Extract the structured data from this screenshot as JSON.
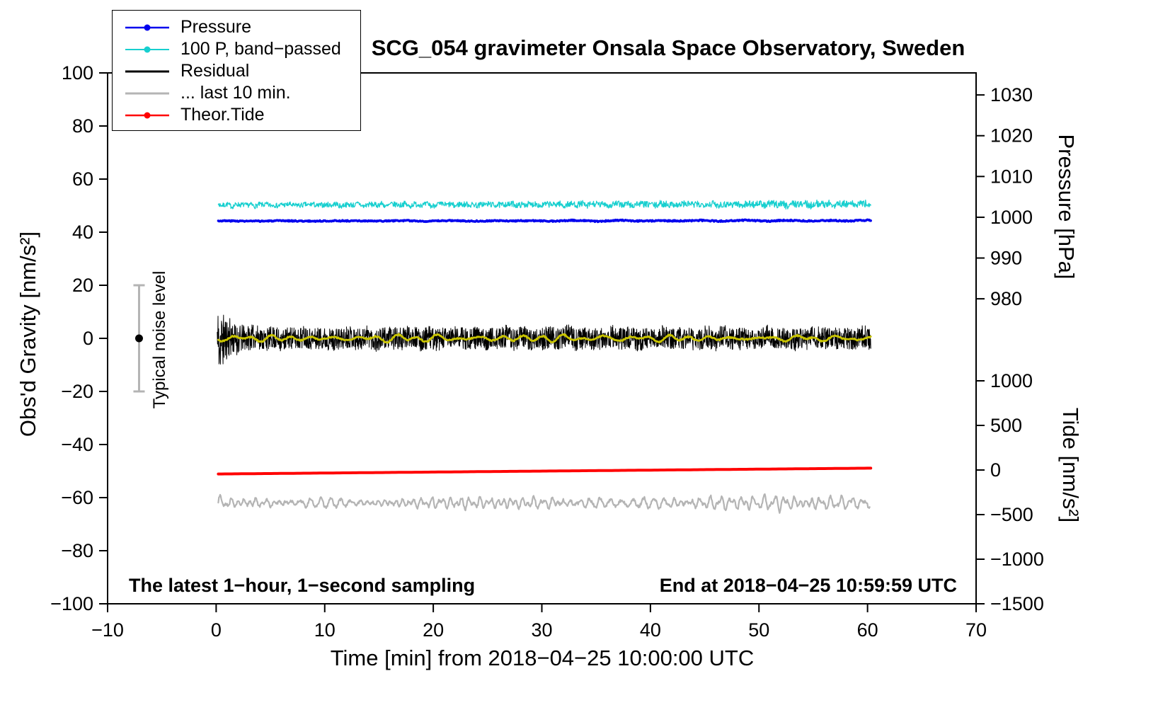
{
  "annotations": {
    "sampling": "The latest 1−hour, 1−second sampling",
    "end_time": "End at 2018−04−25 10:59:59 UTC",
    "noise_label": "Typical noise level"
  },
  "legend": {
    "items": [
      {
        "label": "Pressure",
        "color": "#0000ee",
        "marker_width": 2.5,
        "dot": true
      },
      {
        "label": "100 P, band−passed",
        "color": "#17cfcf",
        "marker_width": 2,
        "dot": true
      },
      {
        "label": "Residual",
        "color": "#000000",
        "marker_width": 3,
        "dot": false
      },
      {
        "label": "... last 10 min.",
        "color": "#b4b4b4",
        "marker_width": 3,
        "dot": false
      },
      {
        "label": "Theor.Tide",
        "color": "#ff0000",
        "marker_width": 2.5,
        "dot": true
      }
    ]
  },
  "chart_data": {
    "type": "line",
    "title": "SCG_054 gravimeter Onsala Space Observatory, Sweden",
    "xlabel": "Time [min] from 2018−04−25 10:00:00 UTC",
    "ylabel": "Obs'd Gravity [nm/s²]",
    "y2label_top": "Pressure [hPa]",
    "y2label_bottom": "Tide [nm/s²]",
    "x_range": [
      -10,
      70
    ],
    "x_ticks": [
      -10,
      0,
      10,
      20,
      30,
      40,
      50,
      60,
      70
    ],
    "y_range": [
      -100,
      100
    ],
    "y_ticks": [
      100,
      80,
      60,
      40,
      20,
      0,
      -20,
      -40,
      -60,
      -80,
      -100
    ],
    "grid": false,
    "pressure_axis": {
      "ticks": [
        1030,
        1020,
        1010,
        1000,
        990,
        980
      ],
      "gravity_of_first_tick": 91.7,
      "gravity_per_hpa": 1.536
    },
    "tide_axis": {
      "ticks": [
        1000,
        500,
        0,
        -500,
        -1000,
        -1500
      ],
      "gravity_of_first_tick": -16,
      "gravity_per_unit": 0.0336
    },
    "noise_bar": {
      "x": -7.1,
      "center": 0,
      "half_range": 20,
      "color": "#b4b4b4",
      "note": "typical noise level ±20 nm/s² marker"
    },
    "series": [
      {
        "id": "bandpassed",
        "name": "100 P, band−passed",
        "color": "#17cfcf",
        "width": 1.3,
        "baseline": 50.2,
        "trend": 0.4,
        "amp": 0.9,
        "amp_end": 1.4,
        "smooth_n": 4,
        "smooth_amp": 0.4,
        "smooth_fmin": 3,
        "smooth_fmax": 9,
        "x_start": 0.2,
        "x_end": 60.3,
        "points": 1500,
        "seed": 7,
        "note": "band-passed pressure ×100, noisy band near 50 on left axis"
      },
      {
        "id": "pressure",
        "name": "Pressure",
        "color": "#0000ee",
        "width": 3.5,
        "baseline": 44.2,
        "trend": 0.15,
        "amp": 0.2,
        "amp_end": 0.25,
        "smooth_n": 3,
        "smooth_amp": 0.12,
        "smooth_fmin": 0.5,
        "smooth_fmax": 2,
        "x_start": 0.2,
        "x_end": 60.3,
        "points": 900,
        "seed": 3,
        "note": "≈ 999 hPa, nearly constant over the hour"
      },
      {
        "id": "residual",
        "name": "Residual",
        "color": "#000000",
        "width": 1,
        "baseline": 0,
        "trend": 0,
        "amp": 4.2,
        "amp_end": 4.2,
        "burst_amp": 11,
        "burst_decay": 1.0,
        "smooth_n": 4,
        "smooth_amp": 0.8,
        "smooth_fmin": 1,
        "smooth_fmax": 5,
        "x_start": 0.1,
        "x_end": 60.3,
        "points": 2600,
        "seed": 11,
        "note": "residual gravity ≈ 0 ± 5 nm/s², larger transient ±18 in first ~2 min"
      },
      {
        "id": "residual-smoothed",
        "name": "Residual (smoothed overlay)",
        "color": "#c9c400",
        "width": 2.8,
        "baseline": 0,
        "trend": 0,
        "amp": 0.25,
        "amp_end": 0.25,
        "smooth_n": 5,
        "smooth_amp": 1.1,
        "smooth_fmin": 1.5,
        "smooth_fmax": 4,
        "x_start": 0.2,
        "x_end": 60.3,
        "points": 800,
        "seed": 5,
        "note": "yellow low-pass trace riding on the residual at ≈ 0"
      },
      {
        "id": "last-10-min",
        "name": "... last 10 min.",
        "color": "#b4b4b4",
        "width": 2.2,
        "baseline": -62,
        "trend": 0,
        "amp": 0.5,
        "amp_end": 0.6,
        "smooth_n": 6,
        "smooth_amp": 2.4,
        "smooth_fmin": 5,
        "smooth_fmax": 14,
        "x_start": 0.2,
        "x_end": 60.2,
        "points": 1100,
        "seed": 9,
        "note": "gray wavy trace plotted offset near −62 on left axis"
      },
      {
        "id": "theor-tide",
        "name": "Theor.Tide",
        "color": "#ff0000",
        "width": 4,
        "baseline": -51.1,
        "trend": 2.2,
        "amp": 0,
        "amp_end": 0,
        "smooth_n": 0,
        "smooth_amp": 0,
        "smooth_fmin": 0,
        "smooth_fmax": 0,
        "x_start": 0.2,
        "x_end": 60.3,
        "points": 200,
        "seed": 2,
        "note": "theoretical tide rising slowly, ≈ −45 → +20 nm/s² on tide axis"
      }
    ]
  }
}
